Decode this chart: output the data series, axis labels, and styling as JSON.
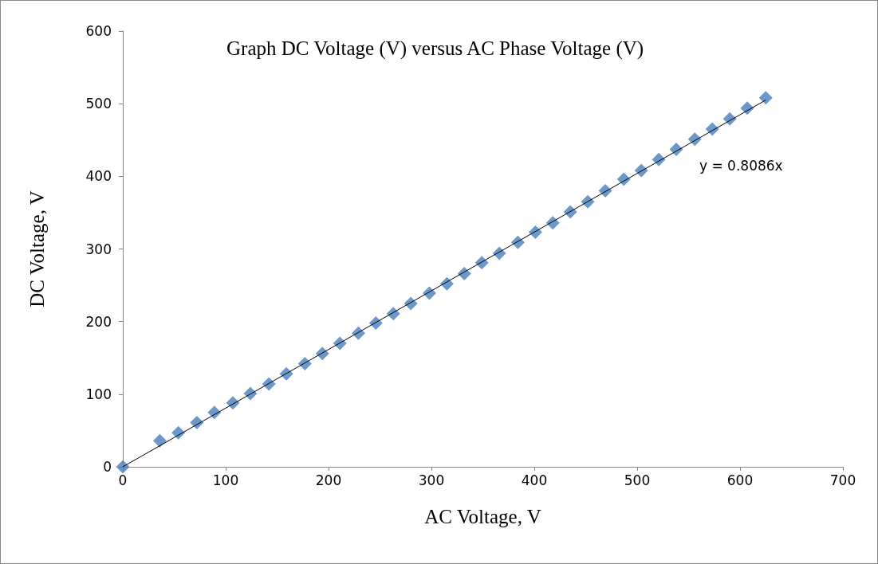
{
  "chart_data": {
    "type": "scatter",
    "title": "Graph DC Voltage (V) versus AC Phase Voltage (V)",
    "xlabel": "AC Voltage, V",
    "ylabel": "DC Voltage, V",
    "x": [
      0,
      36,
      54,
      72,
      89,
      107,
      124,
      142,
      159,
      177,
      194,
      211,
      229,
      246,
      263,
      280,
      298,
      315,
      332,
      349,
      366,
      384,
      401,
      418,
      435,
      452,
      469,
      487,
      504,
      521,
      538,
      556,
      573,
      590,
      607,
      625
    ],
    "series": [
      {
        "color": "#4a7ebb",
        "marker": "diamond",
        "values": [
          0,
          36,
          47,
          61,
          75,
          88,
          101,
          114,
          128,
          142,
          156,
          170,
          184,
          198,
          211,
          225,
          239,
          252,
          266,
          281,
          294,
          309,
          323,
          336,
          351,
          365,
          380,
          396,
          408,
          423,
          437,
          451,
          465,
          479,
          494,
          508
        ]
      },
      {
        "type": "line",
        "color": "#000000",
        "marker": "none",
        "x": [
          0,
          625
        ],
        "values": [
          0,
          505
        ]
      }
    ],
    "annotations": [
      "y = 0.8086x"
    ],
    "xlim": [
      0,
      700
    ],
    "xticks": [
      0,
      100,
      200,
      300,
      400,
      500,
      600,
      700
    ],
    "ylim": [
      0,
      600
    ],
    "yticks": [
      0,
      100,
      200,
      300,
      400,
      500,
      600
    ],
    "grid": false
  }
}
